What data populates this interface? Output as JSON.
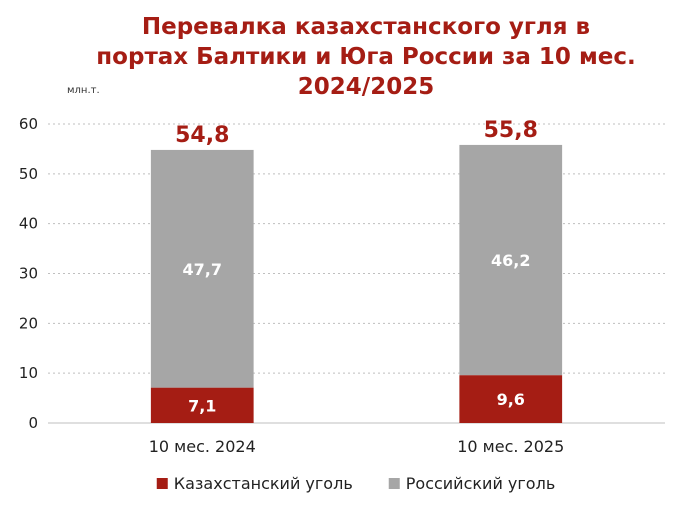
{
  "chart_data": {
    "type": "bar",
    "stacked": true,
    "title_lines": [
      "Перевалка казахстанского угля в",
      "портах Балтики и Юга России за 10 мес.",
      "2024/2025"
    ],
    "unit": "млн.т.",
    "categories": [
      "10 мес. 2024",
      "10 мес. 2025"
    ],
    "series": [
      {
        "name": "Казахстанский уголь",
        "values": [
          7.1,
          9.6
        ],
        "labels": [
          "7,1",
          "9,6"
        ],
        "color": "#a51d14"
      },
      {
        "name": "Российский уголь",
        "values": [
          47.7,
          46.2
        ],
        "labels": [
          "47,7",
          "46,2"
        ],
        "color": "#a6a6a6"
      }
    ],
    "totals": {
      "values": [
        54.8,
        55.8
      ],
      "labels": [
        "54,8",
        "55,8"
      ]
    },
    "ylim": [
      0,
      60
    ],
    "yticks": [
      "0",
      "10",
      "20",
      "30",
      "40",
      "50",
      "60"
    ],
    "grid": true,
    "legend_position": "bottom"
  }
}
